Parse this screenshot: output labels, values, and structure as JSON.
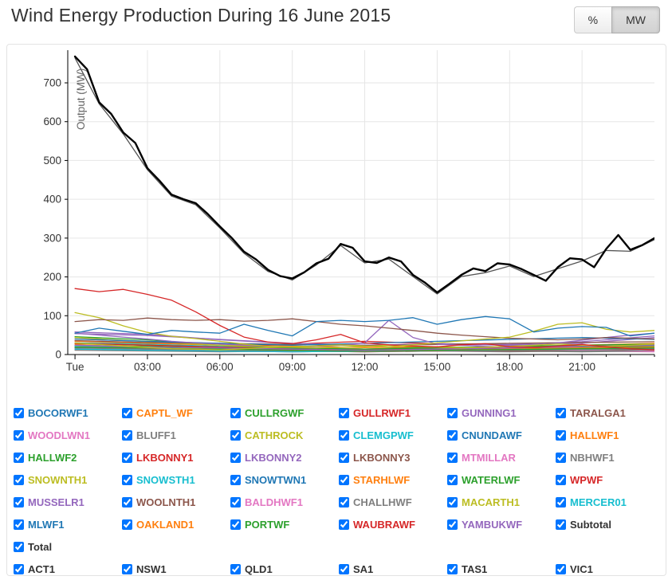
{
  "page_title": "Wind Energy Production During 16 June 2015",
  "unit_toggle": {
    "options": [
      {
        "label": "%",
        "active": false
      },
      {
        "label": "MW",
        "active": true
      }
    ]
  },
  "chart_data": {
    "type": "line",
    "title": "Wind Energy Production During 16 June 2015",
    "date_shown": "16 June 2015",
    "xlabel": "",
    "ylabel": "Output (MW)",
    "ylim": [
      0,
      777
    ],
    "xlim_hours": [
      -0.3,
      24
    ],
    "y_ticks": [
      0,
      100,
      200,
      300,
      400,
      500,
      600,
      700
    ],
    "x_ticks": [
      {
        "hour": 0,
        "label": "Tue"
      },
      {
        "hour": 3,
        "label": "03:00"
      },
      {
        "hour": 6,
        "label": "06:00"
      },
      {
        "hour": 9,
        "label": "09:00"
      },
      {
        "hour": 12,
        "label": "12:00"
      },
      {
        "hour": 15,
        "label": "15:00"
      },
      {
        "hour": 18,
        "label": "18:00"
      },
      {
        "hour": 21,
        "label": "21:00"
      }
    ],
    "grid": true,
    "series": [
      {
        "name": "CAPTL_WF",
        "color": "#ff7f0e",
        "values": [
          40,
          34,
          28,
          22,
          18,
          20,
          16,
          14,
          18
        ]
      },
      {
        "name": "CULLRGWF",
        "color": "#2ca02c",
        "values": [
          46,
          38,
          24,
          17,
          14,
          19,
          17,
          21,
          24
        ]
      },
      {
        "name": "GULLRWF1",
        "color": "#d62728",
        "values": [
          30,
          24,
          20,
          27,
          34,
          28,
          24,
          19,
          14
        ]
      },
      {
        "name": "WOODLWN1",
        "color": "#e377c2",
        "values": [
          24,
          19,
          14,
          11,
          9,
          11,
          14,
          9,
          7
        ]
      },
      {
        "name": "BLUFF1",
        "color": "#7f7f7f",
        "values": [
          14,
          11,
          9,
          7,
          9,
          11,
          9,
          7,
          9
        ]
      },
      {
        "name": "CLEMGPWF",
        "color": "#17becf",
        "values": [
          30,
          27,
          21,
          17,
          14,
          11,
          14,
          17,
          19
        ]
      },
      {
        "name": "CNUNDAWF",
        "color": "#1f77b4",
        "values": [
          20,
          17,
          14,
          11,
          9,
          11,
          13,
          11,
          14
        ]
      },
      {
        "name": "HALLWF1",
        "color": "#ff7f0e",
        "values": [
          34,
          29,
          24,
          19,
          14,
          17,
          19,
          24,
          29
        ]
      },
      {
        "name": "HALLWF2",
        "color": "#2ca02c",
        "values": [
          24,
          21,
          17,
          14,
          11,
          14,
          17,
          19,
          21
        ]
      },
      {
        "name": "LKBONNY2",
        "color": "#9467bd",
        "values": [
          54,
          49,
          39,
          29,
          24,
          27,
          24,
          29,
          44
        ]
      },
      {
        "name": "LKBONNY3",
        "color": "#8c564b",
        "values": [
          19,
          17,
          14,
          11,
          9,
          11,
          9,
          11,
          14
        ]
      },
      {
        "name": "MTMILLAR",
        "color": "#e377c2",
        "values": [
          14,
          11,
          9,
          7,
          9,
          11,
          14,
          11,
          9
        ]
      },
      {
        "name": "NBHWF1",
        "color": "#7f7f7f",
        "values": [
          11,
          9,
          7,
          9,
          11,
          9,
          7,
          9,
          11
        ]
      },
      {
        "name": "SNOWNTH1",
        "color": "#bcbd22",
        "values": [
          44,
          33,
          24,
          14,
          11,
          14,
          17,
          21,
          27
        ]
      },
      {
        "name": "SNOWSTH1",
        "color": "#17becf",
        "values": [
          21,
          17,
          14,
          11,
          9,
          11,
          14,
          17,
          19
        ]
      },
      {
        "name": "SNOWTWN1",
        "color": "#1f77b4",
        "values": [
          17,
          14,
          11,
          9,
          11,
          13,
          15,
          17,
          19
        ]
      },
      {
        "name": "STARHLWF",
        "color": "#ff7f0e",
        "values": [
          27,
          24,
          19,
          14,
          11,
          14,
          17,
          21,
          24
        ]
      },
      {
        "name": "WATERLWF",
        "color": "#2ca02c",
        "values": [
          29,
          24,
          19,
          17,
          14,
          17,
          21,
          24,
          27
        ]
      },
      {
        "name": "WPWF",
        "color": "#d62728",
        "values": [
          19,
          14,
          11,
          9,
          7,
          9,
          11,
          14,
          17
        ]
      },
      {
        "name": "MUSSELR1",
        "color": "#9467bd",
        "values": [
          58,
          52,
          38,
          28,
          24,
          28,
          26,
          33,
          48
        ]
      },
      {
        "name": "WOOLNTH1",
        "color": "#8c564b",
        "values": [
          36,
          31,
          29,
          26,
          23,
          26,
          29,
          31,
          33
        ]
      },
      {
        "name": "BALDHWF1",
        "color": "#e377c2",
        "values": [
          19,
          17,
          14,
          11,
          9,
          11,
          14,
          17,
          19
        ]
      },
      {
        "name": "CHALLHWF",
        "color": "#7f7f7f",
        "values": [
          17,
          14,
          11,
          9,
          7,
          9,
          11,
          13,
          15
        ]
      },
      {
        "name": "MERCER01",
        "color": "#17becf",
        "values": [
          14,
          11,
          9,
          7,
          9,
          11,
          13,
          15,
          17
        ]
      },
      {
        "name": "MLWF1",
        "color": "#1f77b4",
        "values": [
          40,
          34,
          29,
          24,
          29,
          34,
          39,
          44,
          39
        ]
      },
      {
        "name": "OAKLAND1",
        "color": "#ff7f0e",
        "values": [
          24,
          19,
          14,
          11,
          9,
          11,
          14,
          17,
          19
        ]
      },
      {
        "name": "PORTWF",
        "color": "#2ca02c",
        "values": [
          19,
          17,
          14,
          11,
          9,
          11,
          13,
          15,
          17
        ]
      },
      {
        "name": "WAUBRAWF",
        "color": "#d62728",
        "values": [
          29,
          24,
          19,
          14,
          11,
          14,
          17,
          21,
          24
        ]
      },
      {
        "name": "YAMBUKWF",
        "color": "#9467bd",
        "values": [
          24,
          19,
          17,
          14,
          11,
          14,
          17,
          21,
          24
        ]
      },
      {
        "name": "GUNNING1",
        "color": "#9467bd",
        "values": [
          55,
          50,
          45,
          40,
          34,
          30,
          27,
          24,
          21,
          19,
          21,
          24,
          30,
          88,
          44,
          27,
          24,
          21,
          19,
          24,
          30,
          37,
          44,
          50,
          55
        ]
      },
      {
        "name": "CATHROCK",
        "color": "#bcbd22",
        "values": [
          108,
          95,
          74,
          57,
          47,
          41,
          34,
          27,
          21,
          19,
          17,
          19,
          21,
          24,
          21,
          19,
          17,
          19,
          21,
          24,
          27,
          24,
          21,
          24,
          27
        ]
      },
      {
        "name": "TARALGA1",
        "color": "#8c564b",
        "values": [
          85,
          90,
          88,
          94,
          90,
          88,
          90,
          86,
          88,
          92,
          85,
          78,
          74,
          68,
          62,
          55,
          50,
          46,
          42,
          40,
          38,
          40,
          44,
          42,
          40
        ]
      },
      {
        "name": "LKBONNY1",
        "color": "#d62728",
        "values": [
          170,
          162,
          168,
          155,
          140,
          110,
          75,
          45,
          32,
          28,
          38,
          52,
          30,
          25,
          22,
          20,
          25,
          28,
          20,
          18,
          22,
          26,
          20,
          15,
          12
        ]
      },
      {
        "name": "MACARTH1",
        "color": "#bcbd22",
        "values": [
          30,
          26,
          22,
          18,
          15,
          14,
          12,
          15,
          18,
          20,
          22,
          25,
          22,
          20,
          25,
          30,
          35,
          40,
          45,
          60,
          78,
          82,
          65,
          58,
          62
        ]
      },
      {
        "name": "BOCORWF1",
        "color": "#1f77b4",
        "values": [
          55,
          68,
          60,
          52,
          62,
          58,
          55,
          78,
          62,
          48,
          85,
          88,
          85,
          88,
          95,
          78,
          90,
          98,
          92,
          58,
          68,
          72,
          70,
          48,
          55
        ]
      },
      {
        "name": "Subtotal",
        "color": "#555555",
        "values": [
          764,
          646,
          568,
          476,
          408,
          386,
          326,
          261,
          214,
          192,
          231,
          281,
          236,
          246,
          201,
          156,
          201,
          211,
          228,
          201,
          221,
          241,
          268,
          266,
          296
        ]
      },
      {
        "name": "Total",
        "color": "#000000",
        "width": 2.4,
        "values": [
          768,
          735,
          650,
          620,
          572,
          545,
          480,
          448,
          412,
          400,
          390,
          362,
          330,
          300,
          265,
          245,
          218,
          202,
          196,
          212,
          235,
          247,
          285,
          275,
          240,
          236,
          250,
          240,
          205,
          185,
          160,
          182,
          205,
          222,
          215,
          235,
          232,
          220,
          205,
          190,
          225,
          248,
          245,
          225,
          272,
          308,
          270,
          282,
          300
        ]
      }
    ]
  },
  "legend": {
    "farm_items": [
      {
        "label": "BOCORWF1",
        "color": "#1f77b4",
        "checked": true
      },
      {
        "label": "CAPTL_WF",
        "color": "#ff7f0e",
        "checked": true
      },
      {
        "label": "CULLRGWF",
        "color": "#2ca02c",
        "checked": true
      },
      {
        "label": "GULLRWF1",
        "color": "#d62728",
        "checked": true
      },
      {
        "label": "GUNNING1",
        "color": "#9467bd",
        "checked": true
      },
      {
        "label": "TARALGA1",
        "color": "#8c564b",
        "checked": true
      },
      {
        "label": "WOODLWN1",
        "color": "#e377c2",
        "checked": true
      },
      {
        "label": "BLUFF1",
        "color": "#7f7f7f",
        "checked": true
      },
      {
        "label": "CATHROCK",
        "color": "#bcbd22",
        "checked": true
      },
      {
        "label": "CLEMGPWF",
        "color": "#17becf",
        "checked": true
      },
      {
        "label": "CNUNDAWF",
        "color": "#1f77b4",
        "checked": true
      },
      {
        "label": "HALLWF1",
        "color": "#ff7f0e",
        "checked": true
      },
      {
        "label": "HALLWF2",
        "color": "#2ca02c",
        "checked": true
      },
      {
        "label": "LKBONNY1",
        "color": "#d62728",
        "checked": true
      },
      {
        "label": "LKBONNY2",
        "color": "#9467bd",
        "checked": true
      },
      {
        "label": "LKBONNY3",
        "color": "#8c564b",
        "checked": true
      },
      {
        "label": "MTMILLAR",
        "color": "#e377c2",
        "checked": true
      },
      {
        "label": "NBHWF1",
        "color": "#7f7f7f",
        "checked": true
      },
      {
        "label": "SNOWNTH1",
        "color": "#bcbd22",
        "checked": true
      },
      {
        "label": "SNOWSTH1",
        "color": "#17becf",
        "checked": true
      },
      {
        "label": "SNOWTWN1",
        "color": "#1f77b4",
        "checked": true
      },
      {
        "label": "STARHLWF",
        "color": "#ff7f0e",
        "checked": true
      },
      {
        "label": "WATERLWF",
        "color": "#2ca02c",
        "checked": true
      },
      {
        "label": "WPWF",
        "color": "#d62728",
        "checked": true
      },
      {
        "label": "MUSSELR1",
        "color": "#9467bd",
        "checked": true
      },
      {
        "label": "WOOLNTH1",
        "color": "#8c564b",
        "checked": true
      },
      {
        "label": "BALDHWF1",
        "color": "#e377c2",
        "checked": true
      },
      {
        "label": "CHALLHWF",
        "color": "#7f7f7f",
        "checked": true
      },
      {
        "label": "MACARTH1",
        "color": "#bcbd22",
        "checked": true
      },
      {
        "label": "MERCER01",
        "color": "#17becf",
        "checked": true
      },
      {
        "label": "MLWF1",
        "color": "#1f77b4",
        "checked": true
      },
      {
        "label": "OAKLAND1",
        "color": "#ff7f0e",
        "checked": true
      },
      {
        "label": "PORTWF",
        "color": "#2ca02c",
        "checked": true
      },
      {
        "label": "WAUBRAWF",
        "color": "#d62728",
        "checked": true
      },
      {
        "label": "YAMBUKWF",
        "color": "#9467bd",
        "checked": true
      },
      {
        "label": "Subtotal",
        "color": "#333333",
        "checked": true
      }
    ],
    "total_item": {
      "label": "Total",
      "color": "#333333",
      "checked": true
    },
    "region_items": [
      {
        "label": "ACT1",
        "color": "#333333",
        "checked": true
      },
      {
        "label": "NSW1",
        "color": "#333333",
        "checked": true
      },
      {
        "label": "QLD1",
        "color": "#333333",
        "checked": true
      },
      {
        "label": "SA1",
        "color": "#333333",
        "checked": true
      },
      {
        "label": "TAS1",
        "color": "#333333",
        "checked": true
      },
      {
        "label": "VIC1",
        "color": "#333333",
        "checked": true
      }
    ]
  }
}
